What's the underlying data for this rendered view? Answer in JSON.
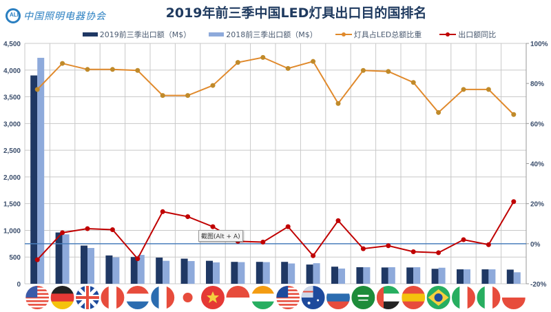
{
  "header": {
    "logo_mark": "ALI",
    "logo_text": "中国照明电器协会",
    "title": "2019年前三季中国LED灯具出口目的国排名"
  },
  "legend": [
    {
      "label": "2019前三季出口额（M$）",
      "type": "bar",
      "color": "#1f3864"
    },
    {
      "label": "2018前三季出口额（M$）",
      "type": "bar",
      "color": "#8eaadb"
    },
    {
      "label": "灯具占LED总额比重",
      "type": "line",
      "color": "#e0892b"
    },
    {
      "label": "出口额同比",
      "type": "line",
      "color": "#c00000"
    }
  ],
  "tooltip": {
    "text": "截图(Alt + A)"
  },
  "colors": {
    "bar2019": "#1f3864",
    "bar2018": "#8eaadb",
    "share_line": "#e0892b",
    "share_marker": "#c08a2a",
    "yoy_line": "#c00000",
    "zero_line": "#4a7ebb",
    "grid": "#c8c8c8",
    "axis_text": "#3a4d6b"
  },
  "chart_data": {
    "type": "bar",
    "title": "2019年前三季中国LED灯具出口目的国排名",
    "categories": [
      "美国",
      "德国",
      "英国",
      "加拿大",
      "荷兰",
      "法国",
      "日本",
      "越南",
      "新加坡",
      "印度",
      "马来西亚",
      "澳大利亚",
      "俄罗斯",
      "沙特阿拉伯",
      "阿联酋",
      "西班牙",
      "巴西",
      "墨西哥",
      "意大利",
      "波兰"
    ],
    "category_flags": [
      "us",
      "de",
      "gb",
      "ca",
      "nl",
      "fr",
      "jp",
      "vn",
      "sg",
      "in",
      "my",
      "au",
      "ru",
      "sa",
      "ae",
      "es",
      "br",
      "mx",
      "it",
      "pl"
    ],
    "series": [
      {
        "name": "2019前三季出口额（M$）",
        "type": "bar",
        "axis": "left",
        "values": [
          3900,
          960,
          715,
          530,
          500,
          490,
          470,
          430,
          410,
          410,
          410,
          360,
          320,
          310,
          305,
          305,
          280,
          270,
          270,
          265
        ]
      },
      {
        "name": "2018前三季出口额（M$）",
        "type": "bar",
        "axis": "left",
        "values": [
          4230,
          925,
          670,
          495,
          540,
          430,
          425,
          400,
          405,
          405,
          380,
          385,
          285,
          310,
          310,
          310,
          300,
          270,
          270,
          215
        ]
      },
      {
        "name": "灯具占LED总额比重",
        "type": "line",
        "axis": "right",
        "values": [
          77,
          90,
          87,
          87,
          86.5,
          74,
          74,
          79,
          90.5,
          93,
          87.5,
          91,
          70,
          86.5,
          86,
          80.5,
          65.5,
          77,
          77,
          64.5
        ]
      },
      {
        "name": "出口额同比",
        "type": "line",
        "axis": "right",
        "values": [
          -8,
          5.5,
          7.5,
          7,
          -7.5,
          16,
          13.5,
          8.5,
          1.2,
          0.8,
          8.5,
          -6,
          11.5,
          -2.5,
          -1,
          -4,
          -4.5,
          2,
          -0.5,
          21
        ]
      }
    ],
    "left_axis": {
      "min": 0,
      "max": 4500,
      "step": 500,
      "ticks": [
        "0",
        "500",
        "1,000",
        "1,500",
        "2,000",
        "2,500",
        "3,000",
        "3,500",
        "4,000",
        "4,500"
      ]
    },
    "right_axis": {
      "min": -20,
      "max": 100,
      "step": 20,
      "ticks": [
        "-20%",
        "0%",
        "20%",
        "40%",
        "60%",
        "80%",
        "100%"
      ]
    },
    "xlabel": "",
    "ylabel": "",
    "grid": true,
    "legend_position": "top"
  }
}
